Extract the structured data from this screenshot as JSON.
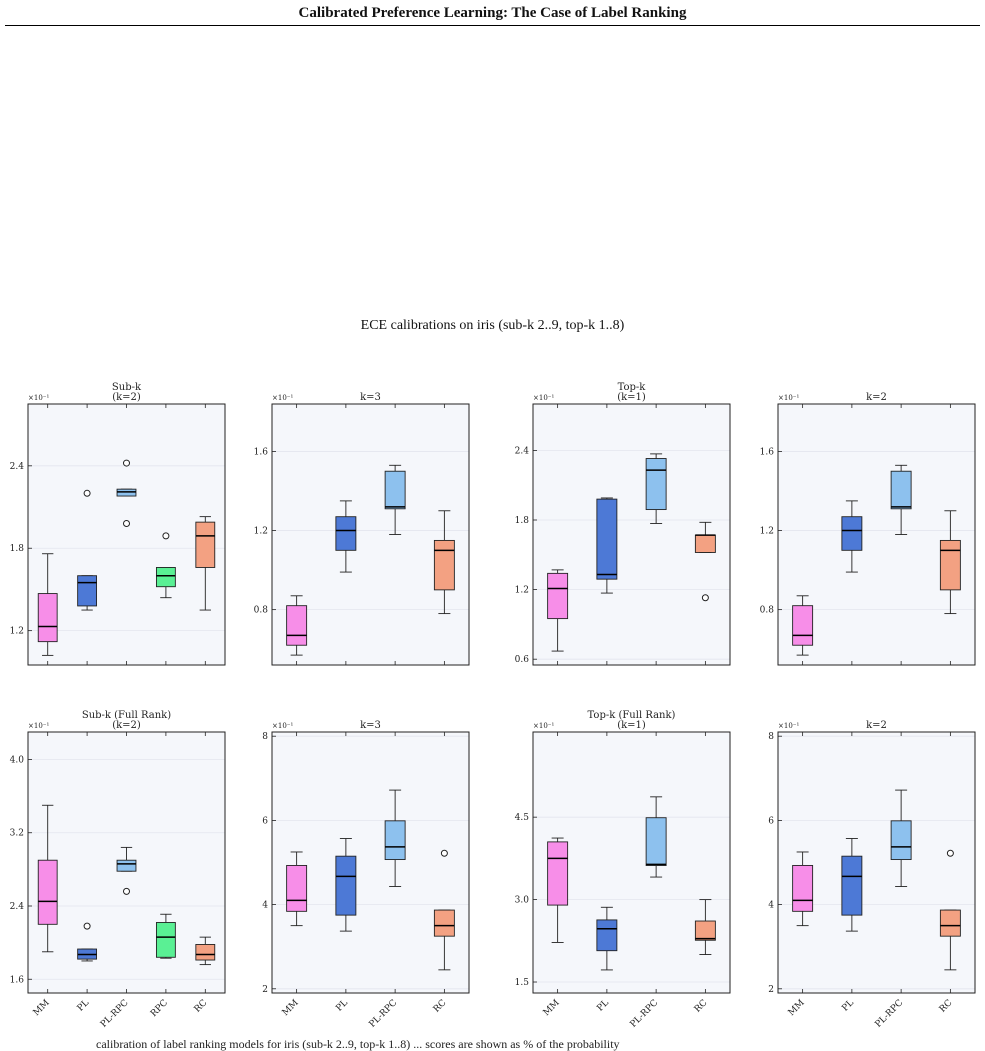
{
  "header": {
    "title": "Calibrated Preference Learning: The Case of Label Ranking"
  },
  "figure": {
    "title": "ECE calibrations on iris (sub-k 2..9, top-k 1..8)"
  },
  "caption": {
    "text": "calibration of label ranking models for iris (sub-k 2..9, top-k 1..8) ... scores are shown as % of the probability"
  },
  "colors": {
    "MM": "#f78ee8",
    "PL": "#4d79d6",
    "PL-RPC": "#8dc1ee",
    "RPC": "#5af094",
    "RC": "#f3a182",
    "panel_bg": "#f5f7fb",
    "grid": "#e3e6ee"
  },
  "chart_data": [
    {
      "type": "box",
      "title": "Sub-k\n(k=2)",
      "scale_label": "×10⁻¹",
      "ylim": [
        0.95,
        2.85
      ],
      "yticks": [
        1.2,
        1.8,
        2.4
      ],
      "ytick_labels": [
        "1.2",
        "1.8",
        "2.4"
      ],
      "categories": [
        "MM",
        "PL",
        "PL-RPC",
        "RPC",
        "RC"
      ],
      "show_xlabels": false,
      "boxes": [
        {
          "category": "MM",
          "min": 1.02,
          "q1": 1.12,
          "median": 1.23,
          "q3": 1.47,
          "max": 1.76,
          "outliers": []
        },
        {
          "category": "PL",
          "min": 1.35,
          "q1": 1.38,
          "median": 1.55,
          "q3": 1.6,
          "max": 1.6,
          "outliers": [
            2.2
          ]
        },
        {
          "category": "PL-RPC",
          "min": 2.18,
          "q1": 2.18,
          "median": 2.21,
          "q3": 2.23,
          "max": 2.23,
          "outliers": [
            2.42,
            1.98
          ]
        },
        {
          "category": "RPC",
          "min": 1.44,
          "q1": 1.52,
          "median": 1.6,
          "q3": 1.66,
          "max": 1.66,
          "outliers": [
            1.89
          ]
        },
        {
          "category": "RC",
          "min": 1.35,
          "q1": 1.66,
          "median": 1.89,
          "q3": 1.99,
          "max": 2.03,
          "outliers": []
        }
      ]
    },
    {
      "type": "box",
      "title": "k=3",
      "scale_label": "×10⁻¹",
      "ylim": [
        0.52,
        1.84
      ],
      "yticks": [
        0.8,
        1.2,
        1.6
      ],
      "ytick_labels": [
        "0.8",
        "1.2",
        "1.6"
      ],
      "categories": [
        "MM",
        "PL",
        "PL-RPC",
        "RC"
      ],
      "show_xlabels": false,
      "boxes": [
        {
          "category": "MM",
          "min": 0.57,
          "q1": 0.62,
          "median": 0.67,
          "q3": 0.82,
          "max": 0.87,
          "outliers": []
        },
        {
          "category": "PL",
          "min": 0.99,
          "q1": 1.1,
          "median": 1.2,
          "q3": 1.27,
          "max": 1.35,
          "outliers": []
        },
        {
          "category": "PL-RPC",
          "min": 1.18,
          "q1": 1.31,
          "median": 1.32,
          "q3": 1.5,
          "max": 1.53,
          "outliers": []
        },
        {
          "category": "RC",
          "min": 0.78,
          "q1": 0.9,
          "median": 1.1,
          "q3": 1.15,
          "max": 1.3,
          "outliers": []
        }
      ]
    },
    {
      "type": "box",
      "title": "Top-k\n(k=1)",
      "scale_label": "×10⁻¹",
      "ylim": [
        0.55,
        2.8
      ],
      "yticks": [
        0.6,
        1.2,
        1.8,
        2.4
      ],
      "ytick_labels": [
        "0.6",
        "1.2",
        "1.8",
        "2.4"
      ],
      "categories": [
        "MM",
        "PL",
        "PL-RPC",
        "RC"
      ],
      "show_xlabels": false,
      "boxes": [
        {
          "category": "MM",
          "min": 0.67,
          "q1": 0.95,
          "median": 1.21,
          "q3": 1.34,
          "max": 1.37,
          "outliers": []
        },
        {
          "category": "PL",
          "min": 1.17,
          "q1": 1.29,
          "median": 1.33,
          "q3": 1.98,
          "max": 1.99,
          "outliers": []
        },
        {
          "category": "PL-RPC",
          "min": 1.77,
          "q1": 1.89,
          "median": 2.23,
          "q3": 2.33,
          "max": 2.37,
          "outliers": []
        },
        {
          "category": "RC",
          "min": 1.52,
          "q1": 1.52,
          "median": 1.67,
          "q3": 1.67,
          "max": 1.78,
          "outliers": [
            1.13
          ]
        }
      ]
    },
    {
      "type": "box",
      "title": "k=2",
      "scale_label": "×10⁻¹",
      "ylim": [
        0.52,
        1.84
      ],
      "yticks": [
        0.8,
        1.2,
        1.6
      ],
      "ytick_labels": [
        "0.8",
        "1.2",
        "1.6"
      ],
      "categories": [
        "MM",
        "PL",
        "PL-RPC",
        "RC"
      ],
      "show_xlabels": false,
      "boxes": [
        {
          "category": "MM",
          "min": 0.57,
          "q1": 0.62,
          "median": 0.67,
          "q3": 0.82,
          "max": 0.87,
          "outliers": []
        },
        {
          "category": "PL",
          "min": 0.99,
          "q1": 1.1,
          "median": 1.2,
          "q3": 1.27,
          "max": 1.35,
          "outliers": []
        },
        {
          "category": "PL-RPC",
          "min": 1.18,
          "q1": 1.31,
          "median": 1.32,
          "q3": 1.5,
          "max": 1.53,
          "outliers": []
        },
        {
          "category": "RC",
          "min": 0.78,
          "q1": 0.9,
          "median": 1.1,
          "q3": 1.15,
          "max": 1.3,
          "outliers": []
        }
      ]
    },
    {
      "type": "box",
      "title": "Sub-k (Full Rank)\n(k=2)",
      "scale_label": "×10⁻¹",
      "ylim": [
        1.45,
        4.3
      ],
      "yticks": [
        1.6,
        2.4,
        3.2,
        4.0
      ],
      "ytick_labels": [
        "1.6",
        "2.4",
        "3.2",
        "4.0"
      ],
      "categories": [
        "MM",
        "PL",
        "PL-RPC",
        "RPC",
        "RC"
      ],
      "show_xlabels": true,
      "boxes": [
        {
          "category": "MM",
          "min": 1.9,
          "q1": 2.2,
          "median": 2.45,
          "q3": 2.9,
          "max": 3.5,
          "outliers": []
        },
        {
          "category": "PL",
          "min": 1.8,
          "q1": 1.82,
          "median": 1.87,
          "q3": 1.93,
          "max": 1.93,
          "outliers": [
            2.18
          ]
        },
        {
          "category": "PL-RPC",
          "min": 2.78,
          "q1": 2.78,
          "median": 2.86,
          "q3": 2.9,
          "max": 3.04,
          "outliers": [
            2.56
          ]
        },
        {
          "category": "RPC",
          "min": 1.83,
          "q1": 1.84,
          "median": 2.06,
          "q3": 2.22,
          "max": 2.31,
          "outliers": []
        },
        {
          "category": "RC",
          "min": 1.76,
          "q1": 1.81,
          "median": 1.87,
          "q3": 1.98,
          "max": 2.06,
          "outliers": []
        }
      ]
    },
    {
      "type": "box",
      "title": "k=3",
      "scale_label": "×10⁻¹",
      "ylim": [
        1.9,
        8.1
      ],
      "yticks": [
        2,
        4,
        6,
        8
      ],
      "ytick_labels": [
        "2",
        "4",
        "6",
        "8"
      ],
      "categories": [
        "MM",
        "PL",
        "PL-RPC",
        "RC"
      ],
      "show_xlabels": true,
      "boxes": [
        {
          "category": "MM",
          "min": 3.5,
          "q1": 3.84,
          "median": 4.1,
          "q3": 4.93,
          "max": 5.25,
          "outliers": []
        },
        {
          "category": "PL",
          "min": 3.37,
          "q1": 3.75,
          "median": 4.67,
          "q3": 5.15,
          "max": 5.57,
          "outliers": []
        },
        {
          "category": "PL-RPC",
          "min": 4.43,
          "q1": 5.07,
          "median": 5.37,
          "q3": 5.99,
          "max": 6.72,
          "outliers": []
        },
        {
          "category": "RC",
          "min": 2.45,
          "q1": 3.25,
          "median": 3.5,
          "q3": 3.87,
          "max": 3.87,
          "outliers": [
            5.22
          ]
        }
      ]
    },
    {
      "type": "box",
      "title": "Top-k (Full Rank)\n(k=1)",
      "scale_label": "×10⁻¹",
      "ylim": [
        1.3,
        6.05
      ],
      "yticks": [
        1.5,
        3.0,
        4.5
      ],
      "ytick_labels": [
        "1.5",
        "3.0",
        "4.5"
      ],
      "categories": [
        "MM",
        "PL",
        "PL-RPC",
        "RC"
      ],
      "show_xlabels": true,
      "boxes": [
        {
          "category": "MM",
          "min": 2.22,
          "q1": 2.9,
          "median": 3.75,
          "q3": 4.05,
          "max": 4.12,
          "outliers": []
        },
        {
          "category": "PL",
          "min": 1.72,
          "q1": 2.07,
          "median": 2.47,
          "q3": 2.63,
          "max": 2.86,
          "outliers": []
        },
        {
          "category": "PL-RPC",
          "min": 3.41,
          "q1": 3.62,
          "median": 3.64,
          "q3": 4.49,
          "max": 4.87,
          "outliers": []
        },
        {
          "category": "RC",
          "min": 2.0,
          "q1": 2.26,
          "median": 2.29,
          "q3": 2.61,
          "max": 3.0,
          "outliers": []
        }
      ]
    },
    {
      "type": "box",
      "title": "k=2",
      "scale_label": "×10⁻¹",
      "ylim": [
        1.9,
        8.1
      ],
      "yticks": [
        2,
        4,
        6,
        8
      ],
      "ytick_labels": [
        "2",
        "4",
        "6",
        "8"
      ],
      "categories": [
        "MM",
        "PL",
        "PL-RPC",
        "RC"
      ],
      "show_xlabels": true,
      "boxes": [
        {
          "category": "MM",
          "min": 3.5,
          "q1": 3.84,
          "median": 4.1,
          "q3": 4.93,
          "max": 5.25,
          "outliers": []
        },
        {
          "category": "PL",
          "min": 3.37,
          "q1": 3.75,
          "median": 4.67,
          "q3": 5.15,
          "max": 5.57,
          "outliers": []
        },
        {
          "category": "PL-RPC",
          "min": 4.43,
          "q1": 5.07,
          "median": 5.37,
          "q3": 5.99,
          "max": 6.72,
          "outliers": []
        },
        {
          "category": "RC",
          "min": 2.45,
          "q1": 3.25,
          "median": 3.5,
          "q3": 3.87,
          "max": 3.87,
          "outliers": [
            5.22
          ]
        }
      ]
    }
  ]
}
